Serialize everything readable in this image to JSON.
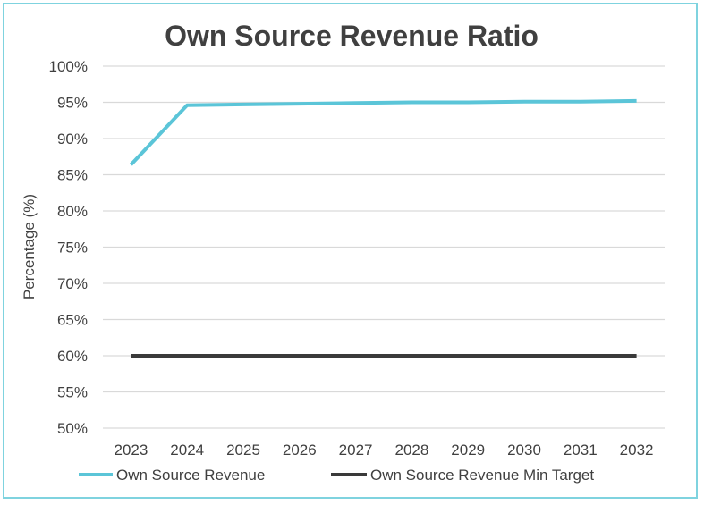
{
  "chart_data": {
    "type": "line",
    "title": "Own Source Revenue Ratio",
    "xlabel": "",
    "ylabel": "Percentage (%)",
    "categories": [
      "2023",
      "2024",
      "2025",
      "2026",
      "2027",
      "2028",
      "2029",
      "2030",
      "2031",
      "2032"
    ],
    "ylim": [
      50,
      100
    ],
    "yticks": [
      "50%",
      "55%",
      "60%",
      "65%",
      "70%",
      "75%",
      "80%",
      "85%",
      "90%",
      "95%",
      "100%"
    ],
    "grid": true,
    "legend_position": "bottom",
    "series": [
      {
        "name": "Own Source Revenue",
        "color": "#5bc5d8",
        "values": [
          86.4,
          94.6,
          94.7,
          94.8,
          94.9,
          95.0,
          95.0,
          95.1,
          95.1,
          95.2
        ]
      },
      {
        "name": "Own Source Revenue Min Target",
        "color": "#3a3a3a",
        "values": [
          60,
          60,
          60,
          60,
          60,
          60,
          60,
          60,
          60,
          60
        ]
      }
    ]
  }
}
